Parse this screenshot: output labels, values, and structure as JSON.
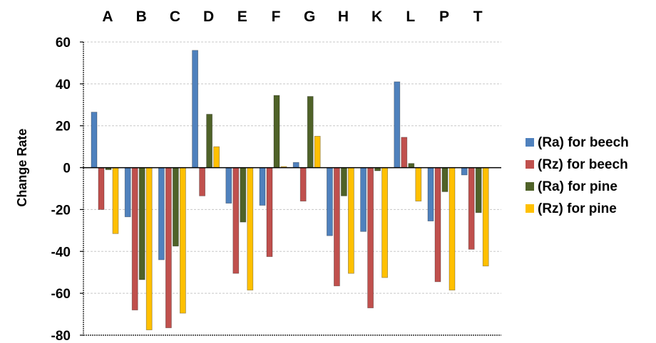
{
  "chart_data": {
    "type": "bar",
    "categories": [
      "A",
      "B",
      "C",
      "D",
      "E",
      "F",
      "G",
      "H",
      "K",
      "L",
      "P",
      "T"
    ],
    "series": [
      {
        "name": "(Ra) for beech",
        "color": "#4F81BD",
        "values": [
          26.5,
          -23.5,
          -44,
          56,
          -17,
          -18,
          2.5,
          -32.5,
          -30.5,
          41,
          -25.5,
          -3.5
        ]
      },
      {
        "name": "(Rz) for beech",
        "color": "#C0504D",
        "values": [
          -20,
          -68,
          -76.5,
          -13.5,
          -50.5,
          -42.5,
          -16,
          -56.5,
          -67,
          14.5,
          -54.5,
          -39
        ]
      },
      {
        "name": "(Ra) for pine",
        "color": "#4F6228",
        "values": [
          -1,
          -53.5,
          -37.5,
          25.5,
          -26,
          34.5,
          34,
          -13.5,
          -1.5,
          2,
          -11.5,
          -21.5
        ]
      },
      {
        "name": "(Rz) for pine",
        "color": "#FFC000",
        "values": [
          -31.5,
          -77.5,
          -69.5,
          10,
          -58.5,
          0.5,
          15,
          -50.5,
          -52.5,
          -16,
          -58.5,
          -47
        ]
      }
    ],
    "ylabel": "Change Rate",
    "xlabel": "",
    "ylim": [
      -80,
      60
    ],
    "yticks": [
      60,
      40,
      20,
      0,
      -20,
      -40,
      -60,
      -80
    ],
    "grid": true,
    "legend": "right",
    "category_labels_position": "top"
  }
}
